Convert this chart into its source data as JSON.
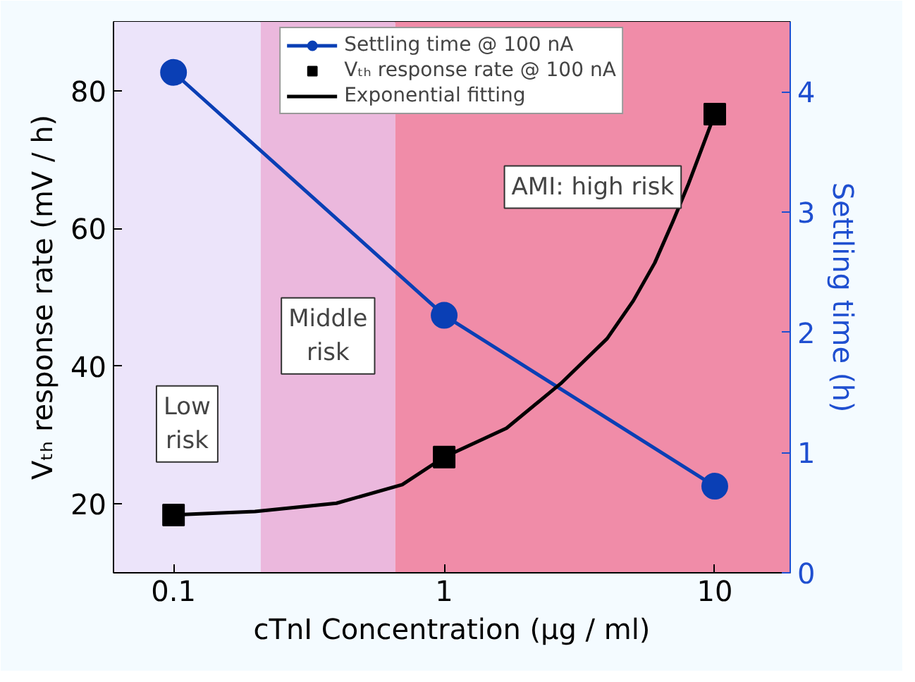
{
  "chart_data": {
    "type": "line",
    "xlabel": "cTnI Concentration (μg / ml)",
    "ylabel": "Vₜₕ response rate (mV / h)",
    "y2label": "Settling time (h)",
    "log": "x",
    "xlim": [
      0.06,
      19
    ],
    "xticks": [
      0.1,
      1,
      10
    ],
    "ylim": [
      10,
      90
    ],
    "yticks": [
      20,
      40,
      60,
      80
    ],
    "y2lim": [
      0,
      4.58
    ],
    "y2ticks": [
      0,
      1,
      2,
      3,
      4
    ],
    "legend": "top",
    "bands": [
      {
        "axis": "x",
        "from": 0.06,
        "to": 0.21,
        "label": "Low\nrisk",
        "color": "#ece4fa"
      },
      {
        "axis": "x",
        "from": 0.21,
        "to": 0.66,
        "label": "Middle\nrisk",
        "color": "#ebb8dd"
      },
      {
        "axis": "x",
        "from": 0.66,
        "to": 19,
        "label": "AMI: high risk",
        "color": "#f08ca8"
      }
    ],
    "series": [
      {
        "name": "Settling time @ 100 nA",
        "axis": "y2",
        "color": "#0a3fb5",
        "marker": "circle",
        "x": [
          0.1,
          1,
          10
        ],
        "values": [
          4.16,
          2.14,
          0.72
        ]
      },
      {
        "name": "Vₜₕ response rate @ 100 nA",
        "type": "scatter",
        "color": "#000000",
        "marker": "square",
        "x": [
          0.1,
          1,
          10
        ],
        "values": [
          18.4,
          26.8,
          76.6
        ]
      },
      {
        "name": "Exponential fitting",
        "color": "#000000",
        "marker": "none",
        "x": [
          0.1,
          0.2,
          0.4,
          0.7,
          1,
          1.7,
          2.7,
          4,
          5,
          6,
          7,
          8,
          10
        ],
        "values": [
          18.4,
          18.9,
          20.1,
          22.8,
          26.8,
          31,
          37.5,
          44,
          49.5,
          55,
          61,
          66.5,
          76.6
        ]
      }
    ]
  }
}
